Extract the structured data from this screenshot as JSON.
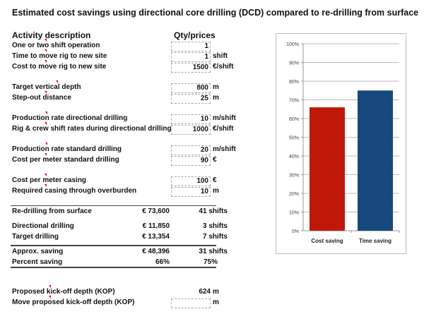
{
  "title": "Estimated cost savings using directional core drilling (DCD) compared to re-drilling from surface",
  "headers": {
    "activity": "Activity description",
    "qty": "Qty/prices"
  },
  "inputs": [
    {
      "label": "One or two shift operation",
      "value": "1",
      "unit": ""
    },
    {
      "label": "Time to move rig to new site",
      "value": "1",
      "unit": "shift"
    },
    {
      "label": "Cost to move rig to new site",
      "value": "1500",
      "unit": "€/shift"
    },
    {
      "label": "Target vertical depth",
      "value": "800",
      "unit": "m"
    },
    {
      "label": "Step-out distance",
      "value": "25",
      "unit": "m"
    },
    {
      "label": "Production rate directional drilling",
      "value": "10",
      "unit": "m/shift"
    },
    {
      "label": "Rig & crew shift rates during directional drilling",
      "value": "1000",
      "unit": "€/shift"
    },
    {
      "label": "Production rate standard drilling",
      "value": "20",
      "unit": "m/shift"
    },
    {
      "label": "Cost per meter standard drilling",
      "value": "90",
      "unit": "€"
    },
    {
      "label": "Cost per meter casing",
      "value": "100",
      "unit": "€"
    },
    {
      "label": "Required casing through overburden",
      "value": "10",
      "unit": "m"
    }
  ],
  "summary": [
    {
      "label": "Re-drilling from surface",
      "cost": "€ 73,600",
      "shifts": "41 shifts"
    },
    {
      "label": "Directional drilling",
      "cost": "€ 11,850",
      "shifts": "3 shifts"
    },
    {
      "label": "Target drilling",
      "cost": "€ 13,354",
      "shifts": "7 shifts"
    },
    {
      "label": "Approx. saving",
      "cost": "€ 48,396",
      "shifts": "31 shifts"
    },
    {
      "label": "Percent saving",
      "cost": "66%",
      "shifts": "75%"
    }
  ],
  "kop": {
    "label": "Proposed kick-off depth (KOP)",
    "value": "624",
    "unit": "m",
    "move_label": "Move proposed kick-off depth (KOP)",
    "move_value": "",
    "move_unit": "m"
  },
  "chart_data": {
    "type": "bar",
    "categories": [
      "Cost saving",
      "Time saving"
    ],
    "values": [
      66,
      75
    ],
    "colors": [
      "#c0190a",
      "#17497d"
    ],
    "ylim": [
      0,
      100
    ],
    "yticks": [
      "0%",
      "10%",
      "20%",
      "30%",
      "40%",
      "50%",
      "60%",
      "70%",
      "80%",
      "90%",
      "100%"
    ],
    "grid": true
  }
}
